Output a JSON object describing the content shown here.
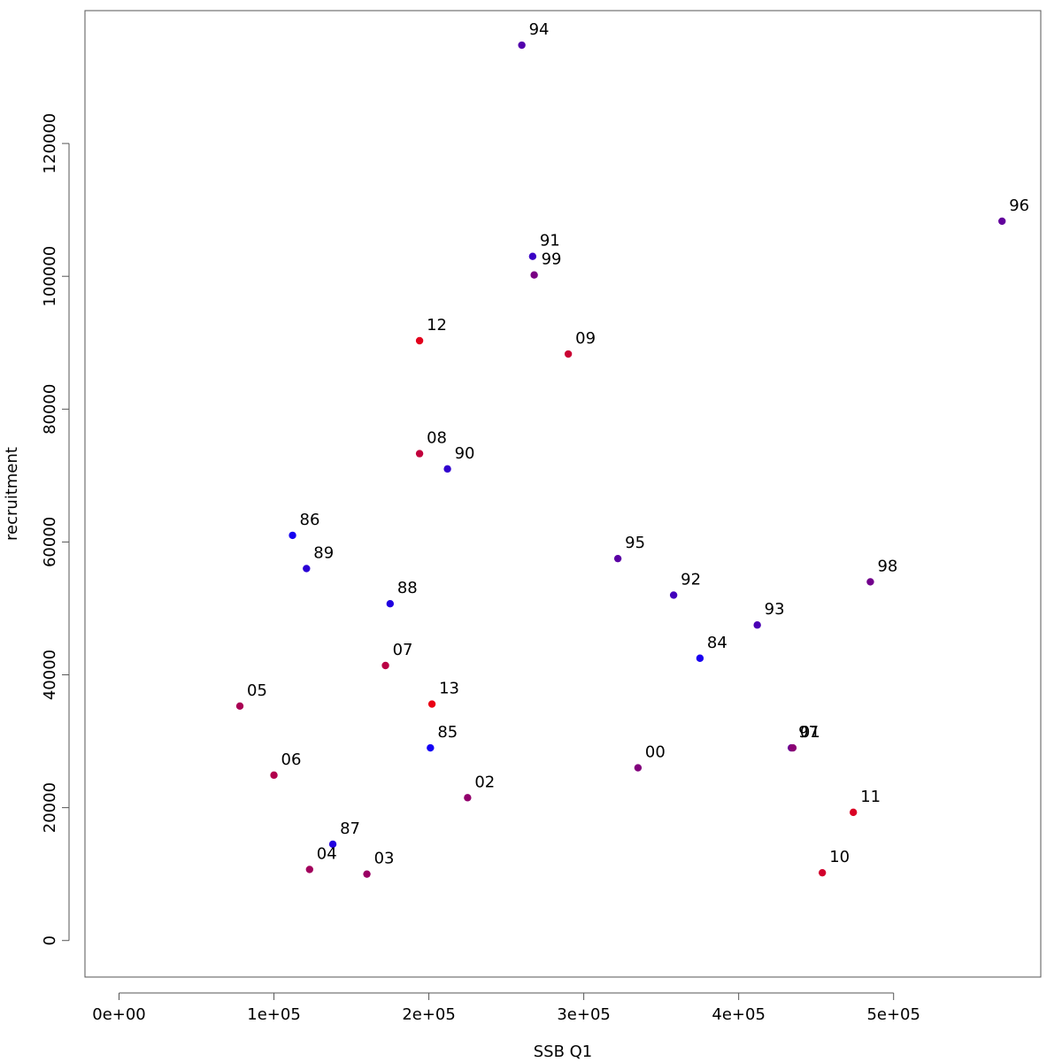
{
  "chart_data": {
    "type": "scatter",
    "title": "",
    "xlabel": "SSB Q1",
    "ylabel": "recruitment",
    "xlim": [
      -22000,
      595000
    ],
    "ylim": [
      -5500,
      140000
    ],
    "xticks": [
      0,
      100000,
      200000,
      300000,
      400000,
      500000
    ],
    "xtick_labels": [
      "0e+00",
      "1e+05",
      "2e+05",
      "3e+05",
      "4e+05",
      "5e+05"
    ],
    "yticks": [
      0,
      20000,
      40000,
      60000,
      80000,
      100000,
      120000
    ],
    "ytick_labels": [
      "0",
      "20000",
      "40000",
      "60000",
      "80000",
      "100000",
      "120000"
    ],
    "grid": false,
    "points": [
      {
        "label": "84",
        "x": 375000,
        "y": 42500,
        "color": "#1a00f0"
      },
      {
        "label": "85",
        "x": 201000,
        "y": 29000,
        "color": "#1400f5"
      },
      {
        "label": "86",
        "x": 112000,
        "y": 61000,
        "color": "#1500f0"
      },
      {
        "label": "87",
        "x": 138000,
        "y": 14500,
        "color": "#2200e0"
      },
      {
        "label": "88",
        "x": 175000,
        "y": 50700,
        "color": "#2000e0"
      },
      {
        "label": "89",
        "x": 121000,
        "y": 56000,
        "color": "#2a00d5"
      },
      {
        "label": "90",
        "x": 212000,
        "y": 71000,
        "color": "#3000ce"
      },
      {
        "label": "91",
        "x": 267000,
        "y": 103000,
        "color": "#3a00c5"
      },
      {
        "label": "92",
        "x": 358000,
        "y": 52000,
        "color": "#4200bc"
      },
      {
        "label": "93",
        "x": 412000,
        "y": 47500,
        "color": "#4a00b4"
      },
      {
        "label": "94",
        "x": 260000,
        "y": 134800,
        "color": "#5200ac"
      },
      {
        "label": "95",
        "x": 322000,
        "y": 57500,
        "color": "#5a00a4"
      },
      {
        "label": "96",
        "x": 570000,
        "y": 108300,
        "color": "#62009c"
      },
      {
        "label": "97",
        "x": 434000,
        "y": 29000,
        "color": "#6a0094"
      },
      {
        "label": "98",
        "x": 485000,
        "y": 54000,
        "color": "#72008c"
      },
      {
        "label": "99",
        "x": 268000,
        "y": 100200,
        "color": "#7a0084"
      },
      {
        "label": "00",
        "x": 335000,
        "y": 26000,
        "color": "#82007c"
      },
      {
        "label": "01",
        "x": 435000,
        "y": 29000,
        "color": "#8a0074"
      },
      {
        "label": "02",
        "x": 225000,
        "y": 21500,
        "color": "#92006c"
      },
      {
        "label": "03",
        "x": 160000,
        "y": 10000,
        "color": "#9a0064"
      },
      {
        "label": "04",
        "x": 123000,
        "y": 10700,
        "color": "#a2005c"
      },
      {
        "label": "05",
        "x": 78000,
        "y": 35300,
        "color": "#aa0054"
      },
      {
        "label": "06",
        "x": 100000,
        "y": 24900,
        "color": "#b2004c"
      },
      {
        "label": "07",
        "x": 172000,
        "y": 41400,
        "color": "#ba0044"
      },
      {
        "label": "08",
        "x": 194000,
        "y": 73300,
        "color": "#c2003c"
      },
      {
        "label": "09",
        "x": 290000,
        "y": 88300,
        "color": "#ca0034"
      },
      {
        "label": "10",
        "x": 454000,
        "y": 10200,
        "color": "#d2002c"
      },
      {
        "label": "11",
        "x": 474000,
        "y": 19300,
        "color": "#da0024"
      },
      {
        "label": "12",
        "x": 194000,
        "y": 90300,
        "color": "#e2001c"
      },
      {
        "label": "13",
        "x": 202000,
        "y": 35600,
        "color": "#ea0014"
      }
    ]
  }
}
